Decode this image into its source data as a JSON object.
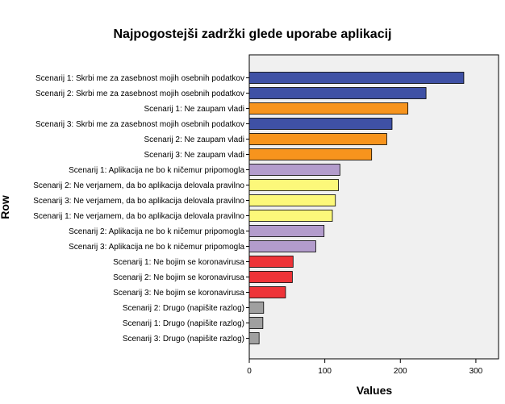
{
  "chart_data": {
    "type": "bar",
    "orientation": "horizontal",
    "title": "Najpogostejši zadržki glede uporabe aplikacij",
    "xlabel": "Values",
    "ylabel": "Row",
    "xlim": [
      0,
      330
    ],
    "xticks": [
      0,
      100,
      200,
      300
    ],
    "grid": false,
    "plot_background": "#f0f0f0",
    "categories": [
      "Scenarij 1: Skrbi me za zasebnost mojih osebnih podatkov",
      "Scenarij 2: Skrbi me za zasebnost mojih osebnih podatkov",
      "Scenarij 1: Ne zaupam vladi",
      "Scenarij 3: Skrbi me za zasebnost mojih osebnih podatkov",
      "Scenarij 2: Ne zaupam vladi",
      "Scenarij 3: Ne zaupam vladi",
      "Scenarij 1: Aplikacija ne bo k ničemur pripomogla",
      "Scenarij 2: Ne verjamem, da bo aplikacija delovala pravilno",
      "Scenarij 3: Ne verjamem, da bo aplikacija delovala pravilno",
      "Scenarij 1: Ne verjamem, da bo aplikacija delovala pravilno",
      "Scenarij 2: Aplikacija ne bo k ničemur pripomogla",
      "Scenarij 3: Aplikacija ne bo k ničemur pripomogla",
      "Scenarij 1: Ne bojim se koronavirusa",
      "Scenarij 2: Ne bojim se koronavirusa",
      "Scenarij 3: Ne bojim se koronavirusa",
      "Scenarij 2: Drugo (napišite razlog)",
      "Scenarij 1: Drugo (napišite razlog)",
      "Scenarij 3: Drugo (napišite razlog)"
    ],
    "values": [
      284,
      234,
      210,
      189,
      182,
      162,
      120,
      118,
      114,
      110,
      99,
      88,
      58,
      57,
      48,
      19,
      18,
      13
    ],
    "colors": [
      "#3f51a5",
      "#3f51a5",
      "#f7941d",
      "#3f51a5",
      "#f7941d",
      "#f7941d",
      "#b39ccc",
      "#fcf87a",
      "#fcf87a",
      "#fcf87a",
      "#b39ccc",
      "#b39ccc",
      "#ee3338",
      "#ee3338",
      "#ee3338",
      "#a0a0a0",
      "#a0a0a0",
      "#a0a0a0"
    ]
  }
}
